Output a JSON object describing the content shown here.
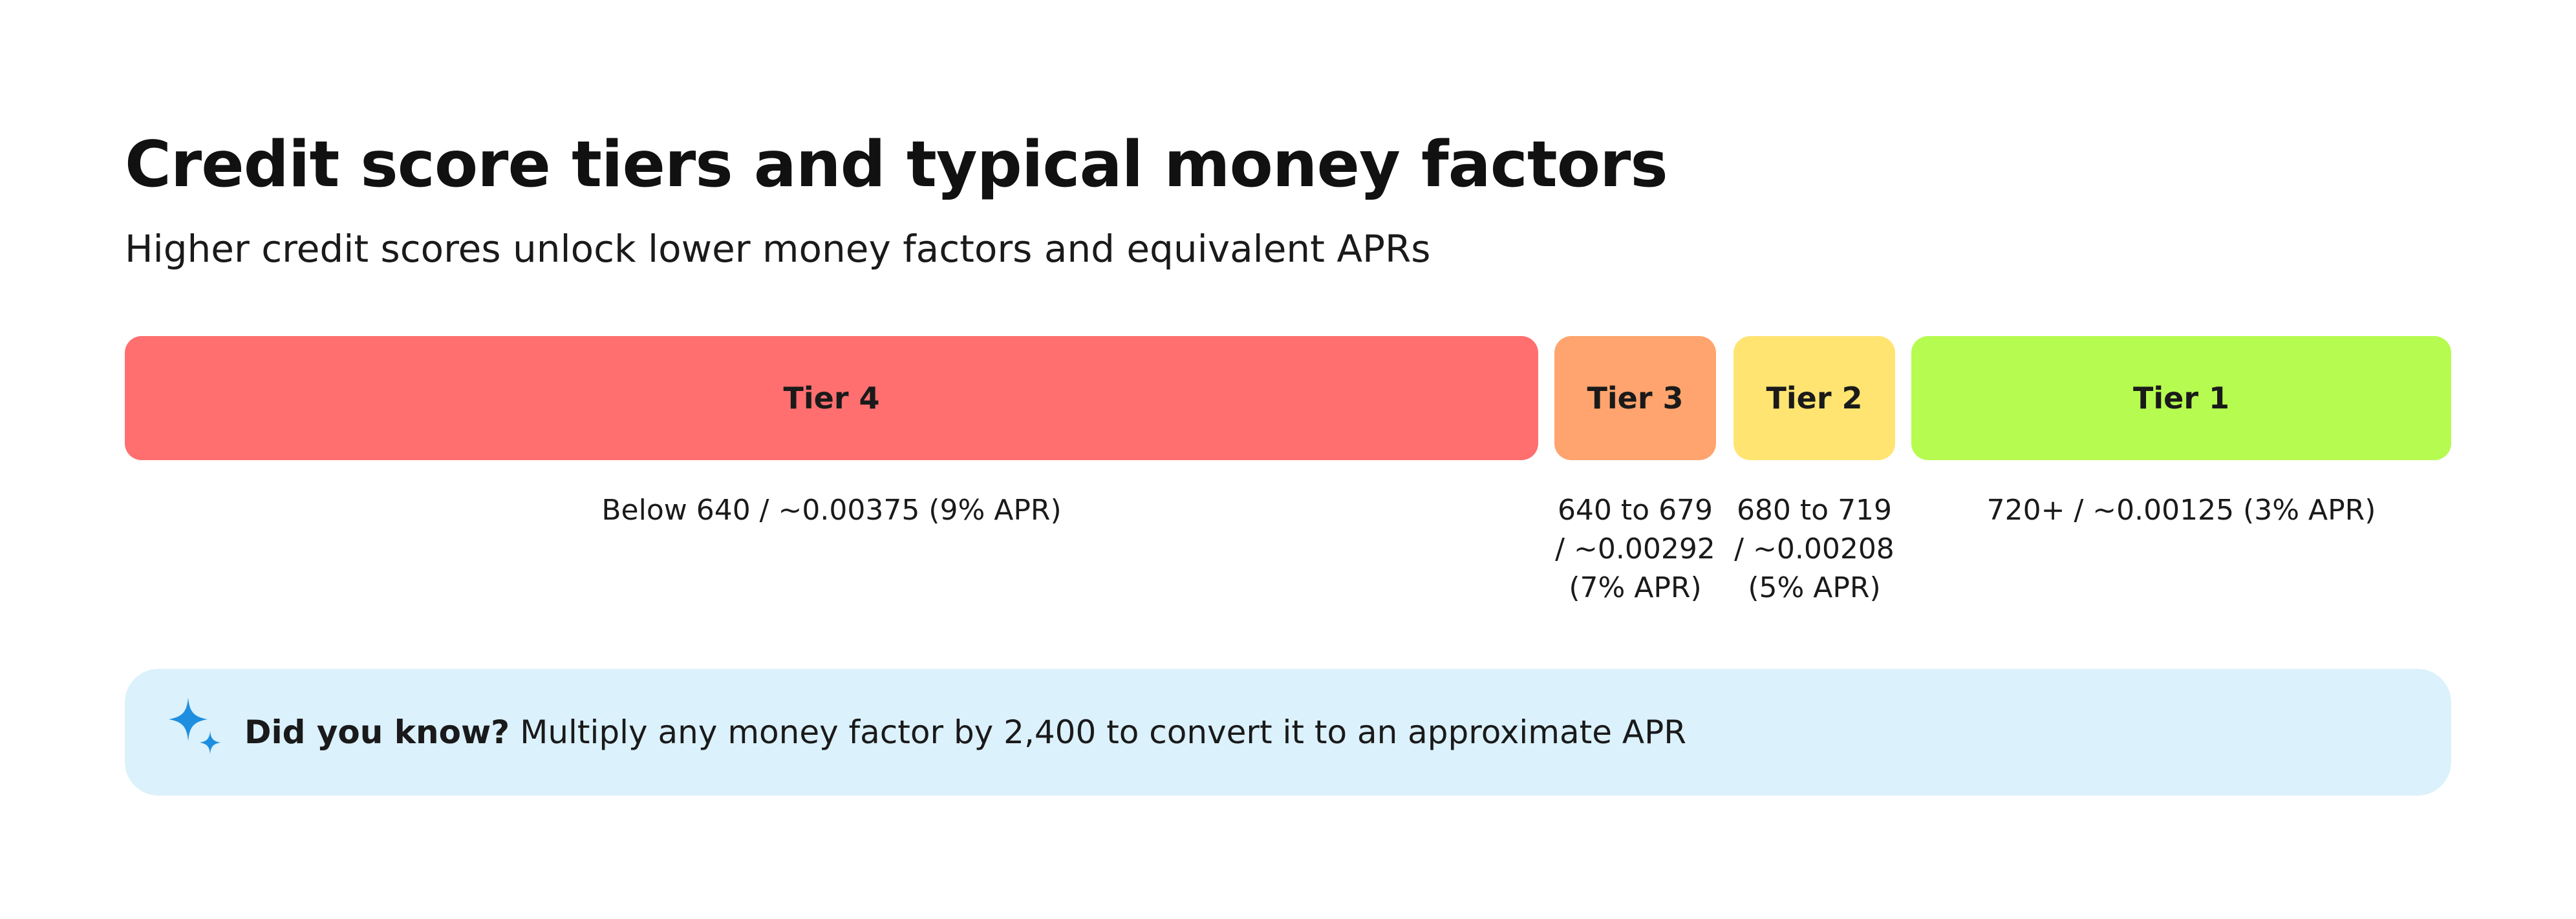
{
  "header": {
    "title": "Credit score tiers and typical money factors",
    "subtitle": "Higher credit scores unlock lower money factors and equivalent APRs"
  },
  "tiers": [
    {
      "label": "Tier 4",
      "description": "Below 640 / ~0.00375 (9% APR)",
      "color": "#ff6f6f"
    },
    {
      "label": "Tier 3",
      "description": "640 to 679 / ~0.00292 (7% APR)",
      "color": "#ffa46e"
    },
    {
      "label": "Tier 2",
      "description": "680 to 719 / ~0.00208 (5% APR)",
      "color": "#ffe472"
    },
    {
      "label": "Tier 1",
      "description": "720+ / ~0.00125 (3% APR)",
      "color": "#b6fb4f"
    }
  ],
  "callout": {
    "icon": "sparkle-icon",
    "lead": "Did you know?",
    "text": "Multiply any money factor by 2,400 to convert it to an approximate APR",
    "background": "#dbf1fc",
    "icon_color": "#1e8fe0"
  }
}
